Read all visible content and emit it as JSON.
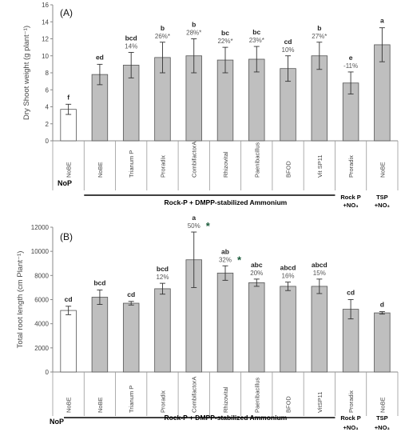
{
  "chart_data": [
    {
      "type": "bar",
      "panel_label": "(A)",
      "ylabel": "Dry Shoot weight (g plant⁻¹)",
      "ylim": [
        0,
        16
      ],
      "yticks": [
        0,
        2,
        4,
        6,
        8,
        10,
        12,
        14,
        16
      ],
      "grid": false,
      "categories": [
        "NoBE",
        "NoBE",
        "Trianum P",
        "Proradix",
        "CombifactorA",
        "Rhizovital",
        "Paenibacillus",
        "BFOD",
        "Vit SP11",
        "Proradix",
        "NoBE"
      ],
      "values": [
        3.7,
        7.8,
        8.9,
        9.8,
        10.0,
        9.5,
        9.6,
        8.5,
        10.0,
        6.8,
        11.3
      ],
      "errors": [
        0.6,
        1.2,
        1.5,
        1.8,
        2.0,
        1.5,
        1.5,
        1.5,
        1.6,
        1.3,
        2.0
      ],
      "significance": [
        "f",
        "ed",
        "bcd",
        "b",
        "b",
        "bc",
        "bc",
        "cd",
        "b",
        "e",
        "a"
      ],
      "percent_change": [
        "",
        "",
        "14%",
        "26%*",
        "28%*",
        "22%*",
        "23%*",
        "10%",
        "27%*",
        "-11%",
        ""
      ],
      "bar_colors": [
        "#ffffff",
        "#bfbfbf",
        "#bfbfbf",
        "#bfbfbf",
        "#bfbfbf",
        "#bfbfbf",
        "#bfbfbf",
        "#bfbfbf",
        "#bfbfbf",
        "#bfbfbf",
        "#bfbfbf"
      ],
      "groups": {
        "nop": "NoP",
        "rockp_main": "Rock-P + DMPP-stabilized Ammonium",
        "rockp_no3_line1": "Rock P",
        "rockp_no3_line2": "+NO₃",
        "tsp_no3_line1": "TSP",
        "tsp_no3_line2": "+NO₃"
      }
    },
    {
      "type": "bar",
      "panel_label": "(B)",
      "ylabel": "Total root length (cm Plant⁻¹)",
      "ylim": [
        0,
        12000
      ],
      "yticks": [
        0,
        2000,
        4000,
        6000,
        8000,
        10000,
        12000
      ],
      "grid": false,
      "categories": [
        "NoBE",
        "NoBE",
        "Trianum P",
        "Proradix",
        "CombifactorA",
        "Rhizovital",
        "Paenibacillus",
        "BFOD",
        "VitSP11",
        "Proradix",
        "NoBE"
      ],
      "values": [
        5100,
        6200,
        5700,
        6900,
        9300,
        8200,
        7400,
        7100,
        7100,
        5200,
        4900
      ],
      "errors": [
        350,
        600,
        150,
        450,
        2300,
        600,
        300,
        350,
        600,
        800,
        100
      ],
      "significance": [
        "cd",
        "bcd",
        "cd",
        "bcd",
        "a",
        "ab",
        "abc",
        "abcd",
        "abcd",
        "cd",
        "d"
      ],
      "percent_change": [
        "",
        "",
        "",
        "12%",
        "50%",
        "32%",
        "20%",
        "16%",
        "15%",
        "",
        ""
      ],
      "star_marks": [
        "",
        "",
        "",
        "",
        "*",
        "*",
        "",
        "",
        "",
        "",
        ""
      ],
      "bar_colors": [
        "#ffffff",
        "#bfbfbf",
        "#bfbfbf",
        "#bfbfbf",
        "#bfbfbf",
        "#bfbfbf",
        "#bfbfbf",
        "#bfbfbf",
        "#bfbfbf",
        "#bfbfbf",
        "#bfbfbf"
      ],
      "groups": {
        "nop": "NoP",
        "rockp_main": "Rock-P + DMPP-stabilized Ammonium",
        "rockp_no3_line1": "Rock P",
        "rockp_no3_line2": "+NO₃",
        "tsp_no3_line1": "TSP",
        "tsp_no3_line2": "+NO₃"
      }
    }
  ]
}
